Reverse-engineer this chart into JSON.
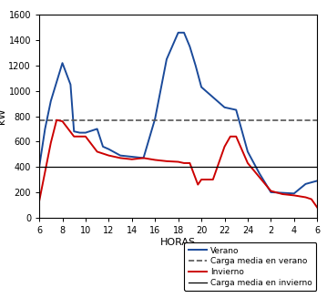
{
  "verano_x": [
    6,
    6.5,
    7,
    8,
    8.7,
    9,
    9.5,
    10,
    11,
    11.5,
    12,
    13,
    14,
    15,
    16,
    17,
    18,
    18.5,
    19,
    19.5,
    20,
    21,
    22,
    23,
    24,
    25,
    26,
    27,
    28,
    29,
    30
  ],
  "verano_y": [
    400,
    700,
    920,
    1220,
    1050,
    680,
    670,
    670,
    700,
    560,
    540,
    490,
    480,
    470,
    780,
    1250,
    1460,
    1460,
    1350,
    1200,
    1030,
    950,
    870,
    850,
    520,
    350,
    200,
    195,
    190,
    265,
    290
  ],
  "invierno_x": [
    6,
    7,
    7.5,
    8,
    9,
    10,
    11,
    12,
    13,
    14,
    15,
    16,
    17,
    18,
    18.5,
    19,
    19.7,
    20,
    21,
    22,
    22.5,
    23,
    24,
    25,
    26,
    27,
    28,
    29,
    29.5,
    30
  ],
  "invierno_y": [
    130,
    590,
    770,
    760,
    640,
    640,
    520,
    490,
    470,
    460,
    470,
    455,
    445,
    440,
    430,
    430,
    260,
    300,
    300,
    560,
    640,
    640,
    430,
    320,
    210,
    185,
    175,
    160,
    145,
    80
  ],
  "carga_media_verano": 770,
  "carga_media_invierno": 400,
  "verano_color": "#1a4a9a",
  "invierno_color": "#cc0000",
  "carga_media_verano_color": "#555555",
  "carga_media_invierno_color": "#000000",
  "xlabel": "HORAS",
  "ylabel": "kW",
  "xlim": [
    6,
    30
  ],
  "ylim": [
    0,
    1600
  ],
  "xtick_positions": [
    6,
    8,
    10,
    12,
    14,
    16,
    18,
    20,
    22,
    24,
    26,
    28,
    30
  ],
  "xtick_labels": [
    "6",
    "8",
    "10",
    "12",
    "14",
    "16",
    "18",
    "20",
    "22",
    "24",
    "2",
    "4",
    "6"
  ],
  "ytick_values": [
    0,
    200,
    400,
    600,
    800,
    1000,
    1200,
    1400,
    1600
  ],
  "legend_labels": [
    "Verano",
    "Carga media en verano",
    "Invierno",
    "Carga media en invierno"
  ]
}
